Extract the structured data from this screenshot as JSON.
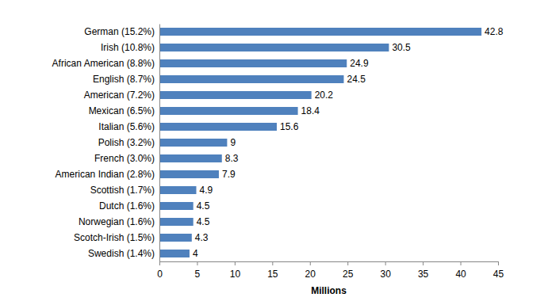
{
  "chart_data": {
    "type": "bar",
    "orientation": "horizontal",
    "categories": [
      "German (15.2%)",
      "Irish (10.8%)",
      "African American (8.8%)",
      "English (8.7%)",
      "American (7.2%)",
      "Mexican (6.5%)",
      "Italian (5.6%)",
      "Polish (3.2%)",
      "French (3.0%)",
      "American Indian (2.8%)",
      "Scottish (1.7%)",
      "Dutch (1.6%)",
      "Norwegian (1.6%)",
      "Scotch-Irish (1.5%)",
      "Swedish (1.4%)"
    ],
    "values": [
      42.8,
      30.5,
      24.9,
      24.5,
      20.2,
      18.4,
      15.6,
      9,
      8.3,
      7.9,
      4.9,
      4.5,
      4.5,
      4.3,
      4
    ],
    "color": "#4f81bd",
    "x_label": "Millions",
    "xlim": [
      0,
      45
    ],
    "xticks": [
      0,
      5,
      10,
      15,
      20,
      25,
      30,
      35,
      40,
      45
    ],
    "grid": false,
    "data_labels": true
  }
}
